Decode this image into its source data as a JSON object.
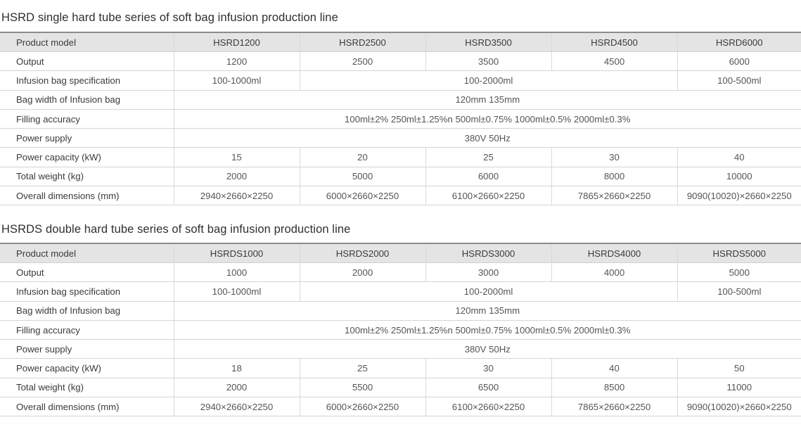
{
  "tables": [
    {
      "title": "HSRD single hard tube series of soft bag infusion production line",
      "header": {
        "label": "Product model",
        "models": [
          "HSRD1200",
          "HSRD2500",
          "HSRD3500",
          "HSRD4500",
          "HSRD6000"
        ]
      },
      "rows": [
        {
          "label": "Output",
          "cells": [
            {
              "text": "1200",
              "span": 1
            },
            {
              "text": "2500",
              "span": 1
            },
            {
              "text": "3500",
              "span": 1
            },
            {
              "text": "4500",
              "span": 1
            },
            {
              "text": "6000",
              "span": 1
            }
          ]
        },
        {
          "label": "Infusion bag specification",
          "cells": [
            {
              "text": "100-1000ml",
              "span": 1
            },
            {
              "text": "100-2000ml",
              "span": 3
            },
            {
              "text": "100-500ml",
              "span": 1
            }
          ]
        },
        {
          "label": "Bag width of Infusion bag",
          "cells": [
            {
              "text": "120mm   135mm",
              "span": 5
            }
          ]
        },
        {
          "label": "Filling accuracy",
          "cells": [
            {
              "text": "100ml±2%   250ml±1.25%n   500ml±0.75%   1000ml±0.5%   2000ml±0.3%",
              "span": 5
            }
          ]
        },
        {
          "label": "Power supply",
          "cells": [
            {
              "text": "380V  50Hz",
              "span": 5
            }
          ]
        },
        {
          "label": "Power capacity (kW)",
          "cells": [
            {
              "text": "15",
              "span": 1
            },
            {
              "text": "20",
              "span": 1
            },
            {
              "text": "25",
              "span": 1
            },
            {
              "text": "30",
              "span": 1
            },
            {
              "text": "40",
              "span": 1
            }
          ]
        },
        {
          "label": "Total weight (kg)",
          "cells": [
            {
              "text": "2000",
              "span": 1
            },
            {
              "text": "5000",
              "span": 1
            },
            {
              "text": "6000",
              "span": 1
            },
            {
              "text": "8000",
              "span": 1
            },
            {
              "text": "10000",
              "span": 1
            }
          ]
        },
        {
          "label": "Overall dimensions (mm)",
          "cells": [
            {
              "text": "2940×2660×2250",
              "span": 1
            },
            {
              "text": "6000×2660×2250",
              "span": 1
            },
            {
              "text": "6100×2660×2250",
              "span": 1
            },
            {
              "text": "7865×2660×2250",
              "span": 1
            },
            {
              "text": "9090(10020)×2660×2250",
              "span": 1
            }
          ]
        }
      ]
    },
    {
      "title": "HSRDS double hard tube series of soft bag infusion production line",
      "header": {
        "label": "Product model",
        "models": [
          "HSRDS1000",
          "HSRDS2000",
          "HSRDS3000",
          "HSRDS4000",
          "HSRDS5000"
        ]
      },
      "rows": [
        {
          "label": "Output",
          "cells": [
            {
              "text": "1000",
              "span": 1
            },
            {
              "text": "2000",
              "span": 1
            },
            {
              "text": "3000",
              "span": 1
            },
            {
              "text": "4000",
              "span": 1
            },
            {
              "text": "5000",
              "span": 1
            }
          ]
        },
        {
          "label": "Infusion bag specification",
          "cells": [
            {
              "text": "100-1000ml",
              "span": 1
            },
            {
              "text": "100-2000ml",
              "span": 3
            },
            {
              "text": "100-500ml",
              "span": 1
            }
          ]
        },
        {
          "label": "Bag width of Infusion bag",
          "cells": [
            {
              "text": "120mm   135mm",
              "span": 5
            }
          ]
        },
        {
          "label": "Filling accuracy",
          "cells": [
            {
              "text": "100ml±2%  250ml±1.25%n  500ml±0.75%  1000ml±0.5%  2000ml±0.3%",
              "span": 5
            }
          ]
        },
        {
          "label": "Power supply",
          "cells": [
            {
              "text": "380V  50Hz",
              "span": 5
            }
          ]
        },
        {
          "label": "Power capacity (kW)",
          "cells": [
            {
              "text": "18",
              "span": 1
            },
            {
              "text": "25",
              "span": 1
            },
            {
              "text": "30",
              "span": 1
            },
            {
              "text": "40",
              "span": 1
            },
            {
              "text": "50",
              "span": 1
            }
          ]
        },
        {
          "label": "Total weight (kg)",
          "cells": [
            {
              "text": "2000",
              "span": 1
            },
            {
              "text": "5500",
              "span": 1
            },
            {
              "text": "6500",
              "span": 1
            },
            {
              "text": "8500",
              "span": 1
            },
            {
              "text": "11000",
              "span": 1
            }
          ]
        },
        {
          "label": "Overall dimensions (mm)",
          "cells": [
            {
              "text": "2940×2660×2250",
              "span": 1
            },
            {
              "text": "6000×2660×2250",
              "span": 1
            },
            {
              "text": "6100×2660×2250",
              "span": 1
            },
            {
              "text": "7865×2660×2250",
              "span": 1
            },
            {
              "text": "9090(10020)×2660×2250",
              "span": 1
            }
          ]
        }
      ]
    }
  ]
}
